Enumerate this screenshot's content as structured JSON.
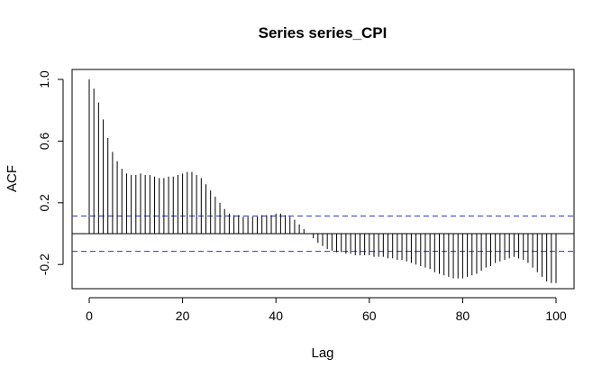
{
  "chart_data": {
    "type": "bar",
    "title": "Series  series_CPI",
    "xlabel": "Lag",
    "ylabel": "ACF",
    "xlim": [
      0,
      100
    ],
    "ylim": [
      -0.36,
      1.0
    ],
    "x_ticks": [
      "0",
      "20",
      "40",
      "60",
      "80",
      "100"
    ],
    "y_ticks": [
      "-0.2",
      "0.2",
      "0.6",
      "1.0"
    ],
    "x_tick_values": [
      0,
      20,
      40,
      60,
      80,
      100
    ],
    "y_tick_values": [
      -0.2,
      0.2,
      0.6,
      1.0
    ],
    "confidence_bound": 0.115,
    "colors": {
      "bars": "#000000",
      "confidence": "#3333cc",
      "zero_line": "#000000"
    },
    "grid": false,
    "series": [
      {
        "lags": [
          0,
          1,
          2,
          3,
          4,
          5,
          6,
          7,
          8,
          9,
          10,
          11,
          12,
          13,
          14,
          15,
          16,
          17,
          18,
          19,
          20,
          21,
          22,
          23,
          24,
          25,
          26,
          27,
          28,
          29,
          30,
          31,
          32,
          33,
          34,
          35,
          36,
          37,
          38,
          39,
          40,
          41,
          42,
          43,
          44,
          45,
          46,
          47,
          48,
          49,
          50,
          51,
          52,
          53,
          54,
          55,
          56,
          57,
          58,
          59,
          60,
          61,
          62,
          63,
          64,
          65,
          66,
          67,
          68,
          69,
          70,
          71,
          72,
          73,
          74,
          75,
          76,
          77,
          78,
          79,
          80,
          81,
          82,
          83,
          84,
          85,
          86,
          87,
          88,
          89,
          90,
          91,
          92,
          93,
          94,
          95,
          96,
          97,
          98,
          99,
          100
        ],
        "values": [
          1.0,
          0.94,
          0.85,
          0.74,
          0.62,
          0.53,
          0.47,
          0.42,
          0.39,
          0.38,
          0.38,
          0.39,
          0.38,
          0.38,
          0.37,
          0.36,
          0.36,
          0.37,
          0.37,
          0.38,
          0.39,
          0.4,
          0.4,
          0.38,
          0.36,
          0.32,
          0.28,
          0.24,
          0.2,
          0.16,
          0.13,
          0.12,
          0.12,
          0.11,
          0.11,
          0.11,
          0.11,
          0.12,
          0.12,
          0.12,
          0.13,
          0.13,
          0.12,
          0.11,
          0.09,
          0.06,
          0.03,
          0.0,
          -0.03,
          -0.06,
          -0.08,
          -0.1,
          -0.11,
          -0.12,
          -0.12,
          -0.13,
          -0.13,
          -0.14,
          -0.14,
          -0.14,
          -0.14,
          -0.15,
          -0.15,
          -0.15,
          -0.16,
          -0.16,
          -0.17,
          -0.17,
          -0.18,
          -0.19,
          -0.2,
          -0.21,
          -0.22,
          -0.23,
          -0.25,
          -0.26,
          -0.27,
          -0.28,
          -0.29,
          -0.29,
          -0.29,
          -0.28,
          -0.27,
          -0.26,
          -0.24,
          -0.22,
          -0.21,
          -0.19,
          -0.18,
          -0.17,
          -0.16,
          -0.15,
          -0.16,
          -0.17,
          -0.19,
          -0.22,
          -0.25,
          -0.28,
          -0.31,
          -0.32,
          -0.32
        ]
      }
    ]
  }
}
